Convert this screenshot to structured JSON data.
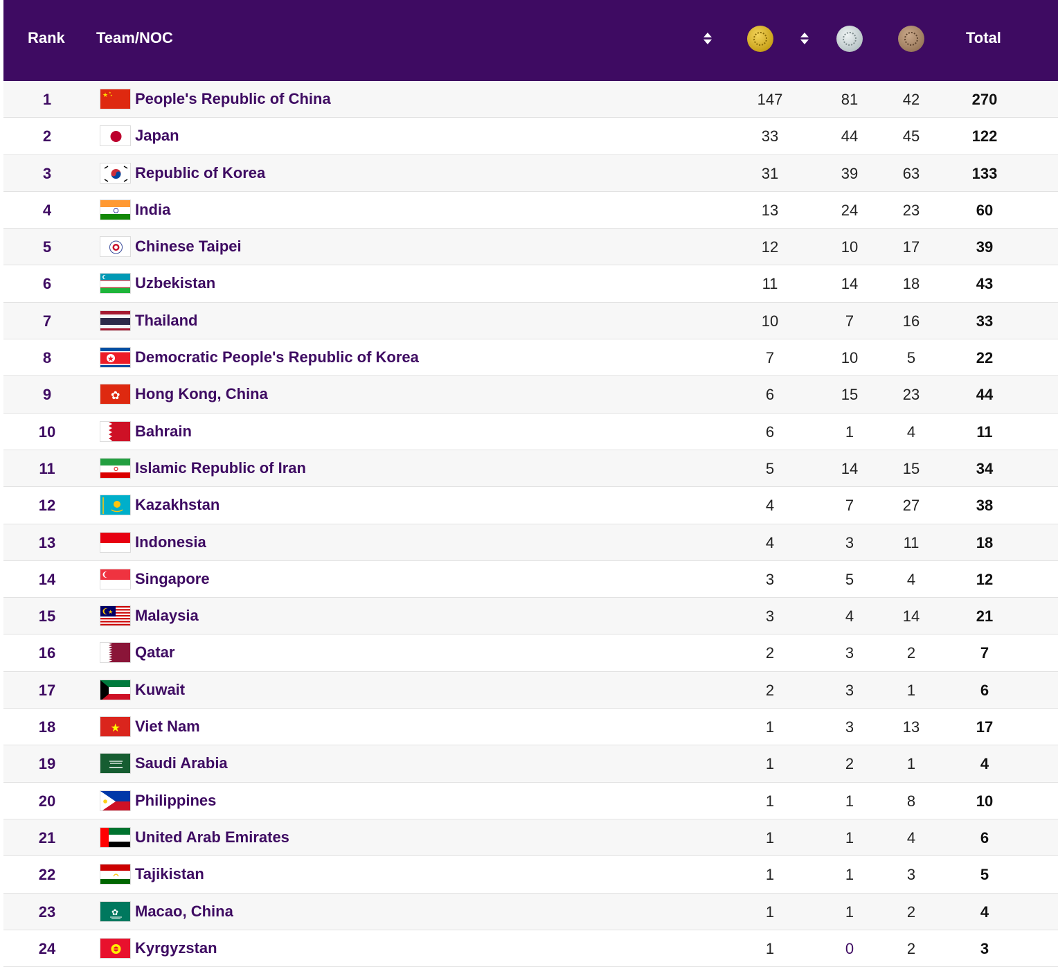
{
  "header": {
    "rank_label": "Rank",
    "team_label": "Team/NOC",
    "gold_icon": "gold-medal-icon",
    "silver_icon": "silver-medal-icon",
    "bronze_icon": "bronze-medal-icon",
    "total_label": "Total",
    "background_color": "#3e0b62"
  },
  "rows": [
    {
      "rank": "1",
      "team": "People's Republic of China",
      "flag": "china-flag-icon",
      "gold": "147",
      "silver": "81",
      "bronze": "42",
      "total": "270"
    },
    {
      "rank": "2",
      "team": "Japan",
      "flag": "japan-flag-icon",
      "gold": "33",
      "silver": "44",
      "bronze": "45",
      "total": "122"
    },
    {
      "rank": "3",
      "team": "Republic of Korea",
      "flag": "south-korea-flag-icon",
      "gold": "31",
      "silver": "39",
      "bronze": "63",
      "total": "133"
    },
    {
      "rank": "4",
      "team": "India",
      "flag": "india-flag-icon",
      "gold": "13",
      "silver": "24",
      "bronze": "23",
      "total": "60"
    },
    {
      "rank": "5",
      "team": "Chinese Taipei",
      "flag": "chinese-taipei-flag-icon",
      "gold": "12",
      "silver": "10",
      "bronze": "17",
      "total": "39"
    },
    {
      "rank": "6",
      "team": "Uzbekistan",
      "flag": "uzbekistan-flag-icon",
      "gold": "11",
      "silver": "14",
      "bronze": "18",
      "total": "43"
    },
    {
      "rank": "7",
      "team": "Thailand",
      "flag": "thailand-flag-icon",
      "gold": "10",
      "silver": "7",
      "bronze": "16",
      "total": "33"
    },
    {
      "rank": "8",
      "team": "Democratic People's Republic of Korea",
      "flag": "north-korea-flag-icon",
      "gold": "7",
      "silver": "10",
      "bronze": "5",
      "total": "22"
    },
    {
      "rank": "9",
      "team": "Hong Kong, China",
      "flag": "hong-kong-flag-icon",
      "gold": "6",
      "silver": "15",
      "bronze": "23",
      "total": "44"
    },
    {
      "rank": "10",
      "team": "Bahrain",
      "flag": "bahrain-flag-icon",
      "gold": "6",
      "silver": "1",
      "bronze": "4",
      "total": "11"
    },
    {
      "rank": "11",
      "team": "Islamic Republic of Iran",
      "flag": "iran-flag-icon",
      "gold": "5",
      "silver": "14",
      "bronze": "15",
      "total": "34"
    },
    {
      "rank": "12",
      "team": "Kazakhstan",
      "flag": "kazakhstan-flag-icon",
      "gold": "4",
      "silver": "7",
      "bronze": "27",
      "total": "38"
    },
    {
      "rank": "13",
      "team": "Indonesia",
      "flag": "indonesia-flag-icon",
      "gold": "4",
      "silver": "3",
      "bronze": "11",
      "total": "18"
    },
    {
      "rank": "14",
      "team": "Singapore",
      "flag": "singapore-flag-icon",
      "gold": "3",
      "silver": "5",
      "bronze": "4",
      "total": "12"
    },
    {
      "rank": "15",
      "team": "Malaysia",
      "flag": "malaysia-flag-icon",
      "gold": "3",
      "silver": "4",
      "bronze": "14",
      "total": "21"
    },
    {
      "rank": "16",
      "team": "Qatar",
      "flag": "qatar-flag-icon",
      "gold": "2",
      "silver": "3",
      "bronze": "2",
      "total": "7"
    },
    {
      "rank": "17",
      "team": "Kuwait",
      "flag": "kuwait-flag-icon",
      "gold": "2",
      "silver": "3",
      "bronze": "1",
      "total": "6"
    },
    {
      "rank": "18",
      "team": "Viet Nam",
      "flag": "vietnam-flag-icon",
      "gold": "1",
      "silver": "3",
      "bronze": "13",
      "total": "17"
    },
    {
      "rank": "19",
      "team": "Saudi Arabia",
      "flag": "saudi-arabia-flag-icon",
      "gold": "1",
      "silver": "2",
      "bronze": "1",
      "total": "4"
    },
    {
      "rank": "20",
      "team": "Philippines",
      "flag": "philippines-flag-icon",
      "gold": "1",
      "silver": "1",
      "bronze": "8",
      "total": "10"
    },
    {
      "rank": "21",
      "team": "United Arab Emirates",
      "flag": "uae-flag-icon",
      "gold": "1",
      "silver": "1",
      "bronze": "4",
      "total": "6"
    },
    {
      "rank": "22",
      "team": "Tajikistan",
      "flag": "tajikistan-flag-icon",
      "gold": "1",
      "silver": "1",
      "bronze": "3",
      "total": "5"
    },
    {
      "rank": "23",
      "team": "Macao, China",
      "flag": "macao-flag-icon",
      "gold": "1",
      "silver": "1",
      "bronze": "2",
      "total": "4"
    },
    {
      "rank": "24",
      "team": "Kyrgyzstan",
      "flag": "kyrgyzstan-flag-icon",
      "gold": "1",
      "silver": "0",
      "bronze": "2",
      "total": "3"
    }
  ]
}
